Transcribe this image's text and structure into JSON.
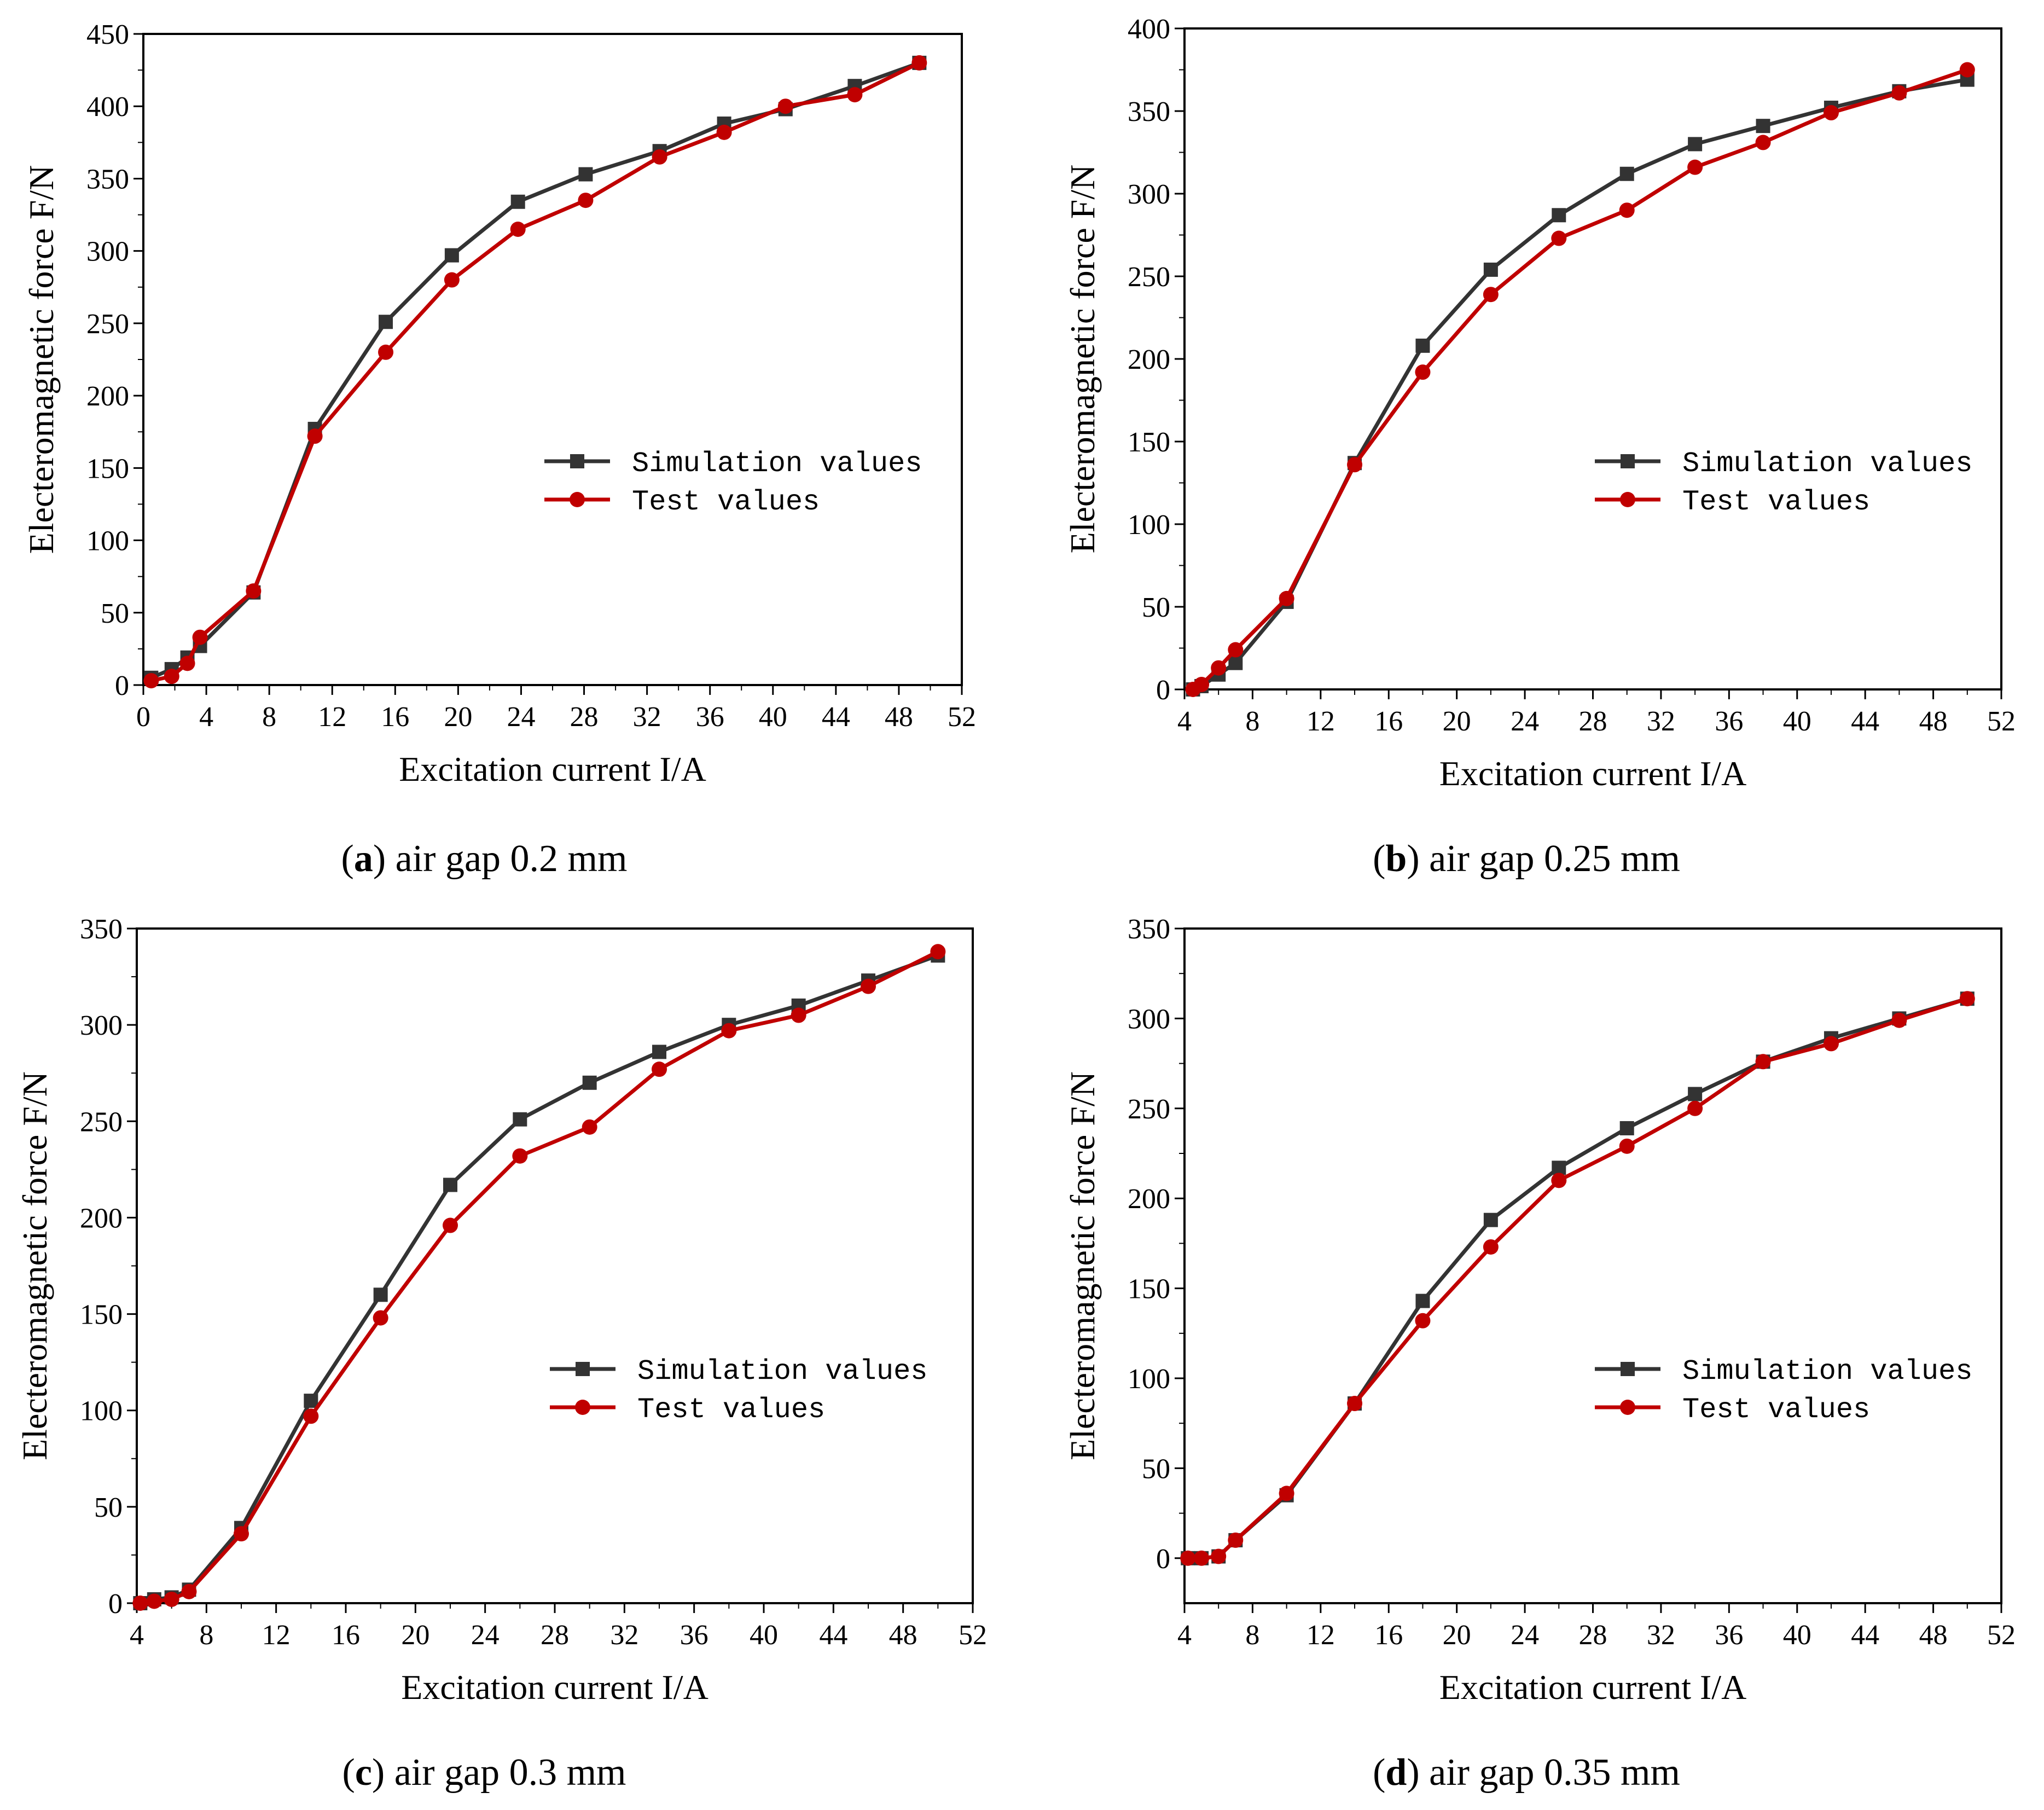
{
  "colors": {
    "simulation": "#333333",
    "test": "#c00000"
  },
  "chart_data": [
    {
      "id": "a",
      "type": "line",
      "caption": {
        "letter": "a",
        "text": " air gap 0.2 mm"
      },
      "xlabel": "Excitation current I/A",
      "ylabel": "Electeromagnetic force F/N",
      "xlim": [
        0,
        52
      ],
      "ylim": [
        0,
        450
      ],
      "xticks": [
        0,
        4,
        8,
        12,
        16,
        20,
        24,
        28,
        32,
        36,
        40,
        44,
        48,
        52
      ],
      "yticks": [
        0,
        50,
        100,
        150,
        200,
        250,
        300,
        350,
        400,
        450
      ],
      "legend": {
        "position": "center-right"
      },
      "series": [
        {
          "name": "Simulation values",
          "marker": "square",
          "x": [
            0.5,
            1.8,
            2.8,
            3.6,
            7,
            10.9,
            15.4,
            19.6,
            23.8,
            28.1,
            32.8,
            36.9,
            40.8,
            45.2,
            49.3
          ],
          "y": [
            5,
            11,
            19,
            27,
            64,
            177,
            251,
            297,
            334,
            353,
            369,
            388,
            398,
            414,
            430
          ]
        },
        {
          "name": "Test values",
          "marker": "circle",
          "x": [
            0.5,
            1.8,
            2.8,
            3.6,
            7,
            10.9,
            15.4,
            19.6,
            23.8,
            28.1,
            32.8,
            36.9,
            40.8,
            45.2,
            49.3
          ],
          "y": [
            3,
            6,
            15,
            33,
            65,
            172,
            230,
            280,
            315,
            335,
            365,
            382,
            400,
            408,
            430
          ]
        }
      ]
    },
    {
      "id": "b",
      "type": "line",
      "caption": {
        "letter": "b",
        "text": " air gap 0.25 mm"
      },
      "xlabel": "Excitation current I/A",
      "ylabel": "Electeromagnetic force F/N",
      "xlim": [
        4,
        52
      ],
      "ylim": [
        0,
        400
      ],
      "xticks": [
        4,
        8,
        12,
        16,
        20,
        24,
        28,
        32,
        36,
        40,
        44,
        48,
        52
      ],
      "yticks": [
        0,
        50,
        100,
        150,
        200,
        250,
        300,
        350,
        400
      ],
      "legend": {
        "position": "center-right"
      },
      "series": [
        {
          "name": "Simulation values",
          "marker": "square",
          "x": [
            4.5,
            5,
            6,
            7,
            10,
            14,
            18,
            22,
            26,
            30,
            34,
            38,
            42,
            46,
            50
          ],
          "y": [
            0,
            2,
            9,
            16,
            53,
            137,
            208,
            254,
            287,
            312,
            330,
            341,
            352,
            362,
            369
          ]
        },
        {
          "name": "Test values",
          "marker": "circle",
          "x": [
            4.5,
            5,
            6,
            7,
            10,
            14,
            18,
            22,
            26,
            30,
            34,
            38,
            42,
            46,
            50
          ],
          "y": [
            0,
            3,
            13,
            24,
            55,
            136,
            192,
            239,
            273,
            290,
            316,
            331,
            349,
            361,
            375
          ]
        }
      ]
    },
    {
      "id": "c",
      "type": "line",
      "caption": {
        "letter": "c",
        "text": " air gap 0.3 mm"
      },
      "xlabel": "Excitation current I/A",
      "ylabel": "Electeromagnetic force F/N",
      "xlim": [
        4,
        52
      ],
      "ylim": [
        0,
        350
      ],
      "xticks": [
        4,
        8,
        12,
        16,
        20,
        24,
        28,
        32,
        36,
        40,
        44,
        48,
        52
      ],
      "yticks": [
        0,
        50,
        100,
        150,
        200,
        250,
        300,
        350
      ],
      "legend": {
        "position": "center-right"
      },
      "series": [
        {
          "name": "Simulation values",
          "marker": "square",
          "x": [
            4.2,
            5,
            6,
            7,
            10,
            14,
            18,
            22,
            26,
            30,
            34,
            38,
            42,
            46,
            50
          ],
          "y": [
            0,
            2,
            3,
            7,
            39,
            105,
            160,
            217,
            251,
            270,
            286,
            300,
            310,
            323,
            336
          ]
        },
        {
          "name": "Test values",
          "marker": "circle",
          "x": [
            4.2,
            5,
            6,
            7,
            10,
            14,
            18,
            22,
            26,
            30,
            34,
            38,
            42,
            46,
            50
          ],
          "y": [
            0,
            1,
            2,
            6,
            36,
            97,
            148,
            196,
            232,
            247,
            277,
            297,
            305,
            320,
            338
          ]
        }
      ]
    },
    {
      "id": "d",
      "type": "line",
      "caption": {
        "letter": "d",
        "text": " air gap 0.35 mm"
      },
      "xlabel": "Excitation current I/A",
      "ylabel": "Electeromagnetic force F/N",
      "xlim": [
        4,
        52
      ],
      "ylim": [
        -25,
        350
      ],
      "xticks": [
        4,
        8,
        12,
        16,
        20,
        24,
        28,
        32,
        36,
        40,
        44,
        48,
        52
      ],
      "yticks": [
        0,
        50,
        100,
        150,
        200,
        250,
        300,
        350
      ],
      "legend": {
        "position": "center-right"
      },
      "series": [
        {
          "name": "Simulation values",
          "marker": "square",
          "x": [
            4.2,
            5,
            6,
            7,
            10,
            14,
            18,
            22,
            26,
            30,
            34,
            38,
            42,
            46,
            50
          ],
          "y": [
            0,
            0,
            1,
            10,
            35,
            86,
            143,
            188,
            217,
            239,
            258,
            276,
            289,
            300,
            311
          ]
        },
        {
          "name": "Test values",
          "marker": "circle",
          "x": [
            4.2,
            5,
            6,
            7,
            10,
            14,
            18,
            22,
            26,
            30,
            34,
            38,
            42,
            46,
            50
          ],
          "y": [
            0,
            0,
            1,
            10,
            36,
            86,
            132,
            173,
            210,
            229,
            250,
            276,
            286,
            299,
            311
          ]
        }
      ]
    }
  ]
}
